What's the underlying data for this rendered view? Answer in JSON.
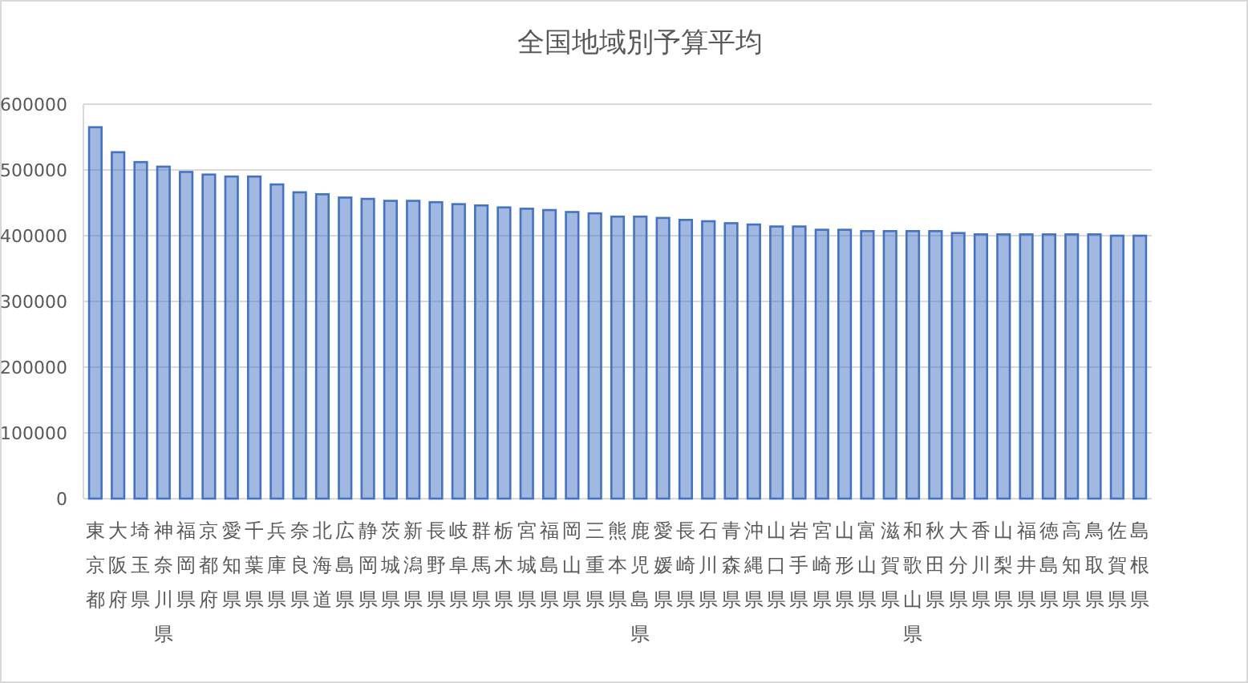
{
  "chart_data": {
    "type": "bar",
    "title": "全国地域別予算平均",
    "categories": [
      "東京都",
      "大阪府",
      "埼玉県",
      "神奈川県",
      "福岡県",
      "京都府",
      "愛知県",
      "千葉県",
      "兵庫県",
      "奈良県",
      "北海道",
      "広島県",
      "静岡県",
      "茨城県",
      "新潟県",
      "長野県",
      "岐阜県",
      "群馬県",
      "栃木県",
      "宮城県",
      "福島県",
      "岡山県",
      "三重県",
      "熊本県",
      "鹿児島県",
      "愛媛県",
      "長崎県",
      "石川県",
      "青森県",
      "沖縄県",
      "山口県",
      "岩手県",
      "宮崎県",
      "山形県",
      "富山県",
      "滋賀県",
      "和歌山県",
      "秋田県",
      "大分県",
      "香川県",
      "山梨県",
      "福井県",
      "徳島県",
      "高知県",
      "鳥取県",
      "佐賀県",
      "島根県"
    ],
    "values": [
      565000,
      527000,
      512000,
      505000,
      497000,
      493000,
      490000,
      490000,
      478000,
      466000,
      463000,
      458000,
      456000,
      453000,
      453000,
      451000,
      448000,
      446000,
      443000,
      441000,
      439000,
      436000,
      434000,
      429000,
      429000,
      427000,
      424000,
      422000,
      419000,
      417000,
      414000,
      414000,
      409000,
      409000,
      407000,
      407000,
      407000,
      407000,
      404000,
      402000,
      402000,
      402000,
      402000,
      402000,
      402000,
      400000,
      400000
    ],
    "color": "#4472c4",
    "ylim": [
      0,
      600000
    ],
    "yticks": [
      0,
      100000,
      200000,
      300000,
      400000,
      500000,
      600000
    ],
    "grid": "y"
  }
}
